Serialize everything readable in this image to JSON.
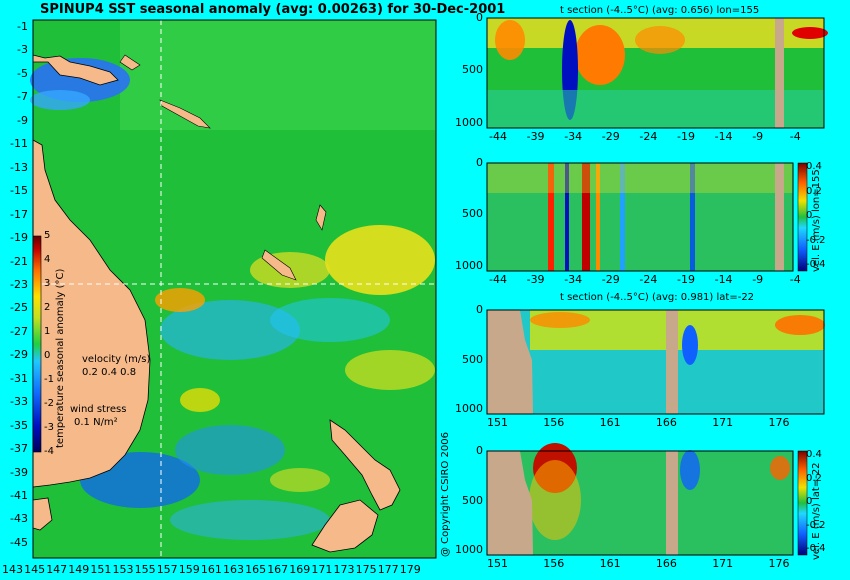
{
  "map": {
    "title": "SPINUP4 SST seasonal anomaly (avg: 0.00263) for 30-Dec-2001",
    "lat_ticks": [
      "-1",
      "-3",
      "-5",
      "-7",
      "-9",
      "-11",
      "-13",
      "-15",
      "-17",
      "-19",
      "-21",
      "-23",
      "-25",
      "-27",
      "-29",
      "-31",
      "-33",
      "-35",
      "-37",
      "-39",
      "-41",
      "-43",
      "-45"
    ],
    "lon_ticks": [
      "143",
      "145",
      "147",
      "149",
      "151",
      "153",
      "155",
      "157",
      "159",
      "161",
      "163",
      "165",
      "167",
      "169",
      "171",
      "173",
      "175",
      "177",
      "179"
    ],
    "colorbar": {
      "label": "temperature seasonal anomaly (°C)",
      "ticks": [
        "5",
        "4",
        "3",
        "2",
        "1",
        "0",
        "-1",
        "-2",
        "-3",
        "-4"
      ],
      "range": [
        -4,
        5
      ]
    },
    "velocity_legend": {
      "label": "velocity (m/s)",
      "values": "0.2 0.4 0.8"
    },
    "wind_legend": {
      "label": "wind stress",
      "value": "0.1 N/m²"
    },
    "guides": {
      "lon": 155,
      "lat": -22
    }
  },
  "panels": [
    {
      "title": "t section (-4..5°C) (avg: 0.656) lon=155",
      "y_ticks": [
        "0",
        "500",
        "1000"
      ],
      "x_ticks": [
        "-44",
        "-39",
        "-34",
        "-29",
        "-24",
        "-19",
        "-14",
        "-9",
        "-4"
      ],
      "colorbar": null
    },
    {
      "title": "",
      "y_ticks": [
        "0",
        "500",
        "1000"
      ],
      "x_ticks": [
        "-44",
        "-39",
        "-34",
        "-29",
        "-24",
        "-19",
        "-14",
        "-9",
        "-4"
      ],
      "colorbar": {
        "label": "vel. E (m/s) lon=155",
        "ticks": [
          "0.4",
          "0.2",
          "0",
          "-0.2",
          "-0.4"
        ]
      }
    },
    {
      "title": "t section (-4..5°C) (avg: 0.981) lat=-22",
      "y_ticks": [
        "0",
        "500",
        "1000"
      ],
      "x_ticks": [
        "151",
        "156",
        "161",
        "166",
        "171",
        "176"
      ],
      "colorbar": null
    },
    {
      "title": "",
      "y_ticks": [
        "0",
        "500",
        "1000"
      ],
      "x_ticks": [
        "151",
        "156",
        "161",
        "166",
        "171",
        "176"
      ],
      "colorbar": {
        "label": "vel. E (m/s) lat=-22",
        "ticks": [
          "0.4",
          "0.2",
          "0",
          "-0.2",
          "-0.4"
        ]
      }
    }
  ],
  "copyright": "@ Copyright CSIRO 2006",
  "colors": {
    "background": "#00ffff",
    "land": "#f5b98a",
    "ocean": "#1fbf3a",
    "mask": "#c8a88a"
  },
  "chart_data": [
    {
      "type": "heatmap",
      "title": "SPINUP4 SST seasonal anomaly (avg: 0.00263) for 30-Dec-2001",
      "xlabel": "",
      "ylabel": "",
      "xlim": [
        143,
        180
      ],
      "ylim": [
        -45,
        0
      ],
      "colorbar_label": "temperature seasonal anomaly (°C)",
      "clim": [
        -4,
        5
      ],
      "average": 0.00263
    },
    {
      "type": "heatmap",
      "title": "t section (-4..5°C) (avg: 0.656) lon=155",
      "xlim": [
        -45,
        -1
      ],
      "ylim": [
        1050,
        0
      ],
      "clim": [
        -4,
        5
      ],
      "average": 0.656
    },
    {
      "type": "heatmap",
      "title": "",
      "xlim": [
        -45,
        -1
      ],
      "ylim": [
        1050,
        0
      ],
      "colorbar_label": "vel. E (m/s) lon=155",
      "clim": [
        -0.4,
        0.4
      ]
    },
    {
      "type": "heatmap",
      "title": "t section (-4..5°C) (avg: 0.981) lat=-22",
      "xlim": [
        150,
        180
      ],
      "ylim": [
        1050,
        0
      ],
      "clim": [
        -4,
        5
      ],
      "average": 0.981
    },
    {
      "type": "heatmap",
      "title": "",
      "xlim": [
        150,
        180
      ],
      "ylim": [
        1050,
        0
      ],
      "colorbar_label": "vel. E (m/s) lat=-22",
      "clim": [
        -0.4,
        0.4
      ]
    }
  ]
}
